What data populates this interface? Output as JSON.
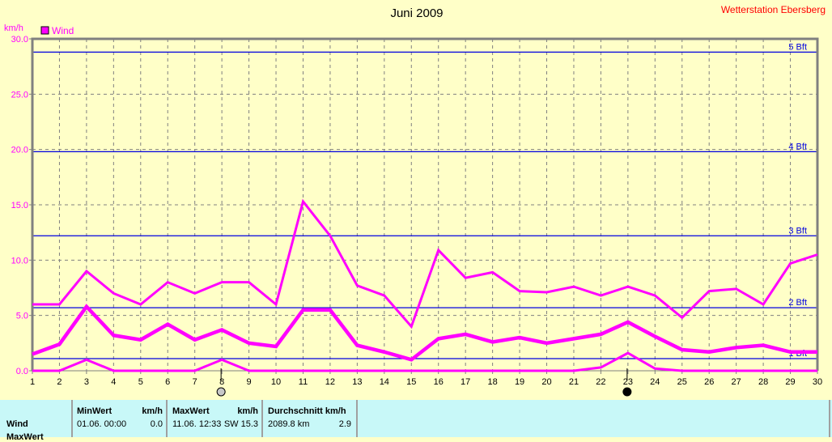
{
  "chart_data": {
    "type": "line",
    "title": "Juni 2009",
    "station": "Wetterstation Ebersberg",
    "ylabel": "km/h",
    "ylim": [
      0,
      30
    ],
    "yticks": [
      "0.0",
      "5.0",
      "10.0",
      "15.0",
      "20.0",
      "25.0",
      "30.0"
    ],
    "x": [
      1,
      2,
      3,
      4,
      5,
      6,
      7,
      8,
      9,
      10,
      11,
      12,
      13,
      14,
      15,
      16,
      17,
      18,
      19,
      20,
      21,
      22,
      23,
      24,
      25,
      26,
      27,
      28,
      29,
      30
    ],
    "grid": true,
    "legend": {
      "placement": "top-left",
      "entries": [
        "Wind"
      ]
    },
    "color": "#ff00ff",
    "series": [
      {
        "values": [
          6.0,
          6.0,
          9.0,
          7.0,
          6.0,
          8.0,
          7.0,
          8.0,
          8.0,
          6.0,
          15.3,
          12.2,
          7.7,
          6.8,
          4.0,
          10.9,
          8.4,
          8.9,
          7.2,
          7.1,
          7.6,
          6.8,
          7.6,
          6.8,
          4.8,
          7.2,
          7.4,
          6.0,
          9.7,
          10.5
        ]
      },
      {
        "values": [
          1.5,
          2.4,
          5.8,
          3.2,
          2.8,
          4.2,
          2.8,
          3.7,
          2.5,
          2.2,
          5.5,
          5.5,
          2.3,
          1.7,
          1.0,
          2.9,
          3.3,
          2.6,
          3.0,
          2.5,
          2.9,
          3.3,
          4.4,
          3.1,
          1.9,
          1.7,
          2.1,
          2.3,
          1.7,
          1.7
        ]
      },
      {
        "values": [
          0,
          0,
          1.0,
          0,
          0,
          0,
          0,
          1.0,
          0,
          0,
          0,
          0,
          0,
          0,
          0,
          0,
          0,
          0,
          0,
          0,
          0,
          0.3,
          1.6,
          0.2,
          0,
          0,
          0,
          0,
          0,
          0
        ]
      }
    ],
    "reference_lines": [
      {
        "label": "1 Bft",
        "value": 1.1
      },
      {
        "label": "2 Bft",
        "value": 5.7
      },
      {
        "label": "3 Bft",
        "value": 12.2
      },
      {
        "label": "4 Bft",
        "value": 19.8
      },
      {
        "label": "5 Bft",
        "value": 28.8
      }
    ],
    "reference_color": "#0000e0",
    "moon_markers": [
      {
        "day": 8,
        "phase": "full-moon"
      },
      {
        "day": 23,
        "phase": "new-moon"
      }
    ]
  },
  "table": {
    "row_label": "Wind",
    "row2_label": "MaxWert",
    "min": {
      "header": "MinWert",
      "unit": "km/h",
      "date": "01.06.  00:00",
      "value": "0.0"
    },
    "max": {
      "header": "MaxWert",
      "unit": "km/h",
      "date": "11.06.  12:33",
      "dir_value": "SW 15.3"
    },
    "avg": {
      "header": "Durchschnitt km/h",
      "distance": "2089.8 km",
      "value": "2.9"
    }
  }
}
